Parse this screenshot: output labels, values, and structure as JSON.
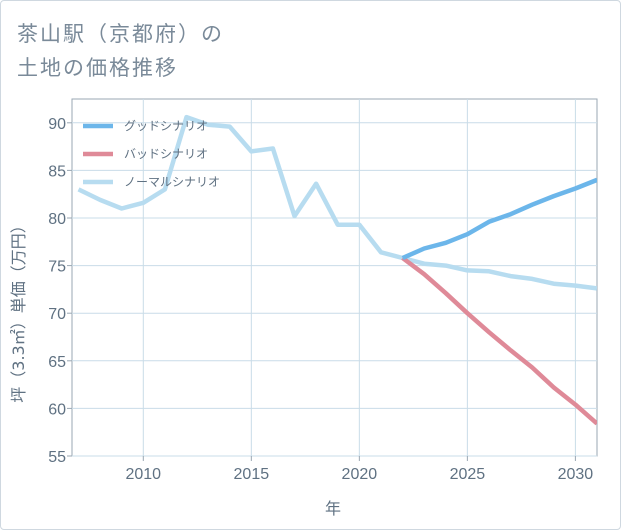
{
  "title": {
    "line1": "茶山駅（京都府）の",
    "line2": "土地の価格推移"
  },
  "chart_data": {
    "type": "line",
    "xlabel": "年",
    "ylabel": "坪（3.3㎡）単価（万円）",
    "xlim": [
      2006.7,
      2031
    ],
    "ylim": [
      55,
      92.5
    ],
    "x_ticks": [
      2010,
      2015,
      2020,
      2025,
      2030
    ],
    "y_ticks": [
      55,
      60,
      65,
      70,
      75,
      80,
      85,
      90
    ],
    "grid": true,
    "legend_position": "top-left",
    "series": [
      {
        "name": "グッドシナリオ",
        "color": "#6cb6ea",
        "x": [
          2022,
          2023,
          2024,
          2025,
          2026,
          2027,
          2028,
          2029,
          2030,
          2031
        ],
        "y": [
          75.8,
          76.8,
          77.4,
          78.3,
          79.6,
          80.4,
          81.4,
          82.3,
          83.1,
          84.0
        ]
      },
      {
        "name": "バッドシナリオ",
        "color": "#df8a98",
        "x": [
          2022,
          2023,
          2024,
          2025,
          2026,
          2027,
          2028,
          2029,
          2030,
          2031
        ],
        "y": [
          75.8,
          74.1,
          72.1,
          70.0,
          68.0,
          66.1,
          64.3,
          62.2,
          60.4,
          58.4
        ]
      },
      {
        "name": "ノーマルシナリオ",
        "color": "#b7dcf0",
        "x": [
          2007,
          2008,
          2009,
          2010,
          2011,
          2012,
          2013,
          2014,
          2015,
          2016,
          2017,
          2018,
          2019,
          2020,
          2021,
          2022,
          2023,
          2024,
          2025,
          2026,
          2027,
          2028,
          2029,
          2030,
          2031
        ],
        "y": [
          83.0,
          81.9,
          81.0,
          81.6,
          83.0,
          90.6,
          89.8,
          89.6,
          87.0,
          87.3,
          80.2,
          83.6,
          79.3,
          79.3,
          76.4,
          75.8,
          75.2,
          75.0,
          74.5,
          74.4,
          73.9,
          73.6,
          73.1,
          72.9,
          72.6
        ]
      }
    ]
  }
}
